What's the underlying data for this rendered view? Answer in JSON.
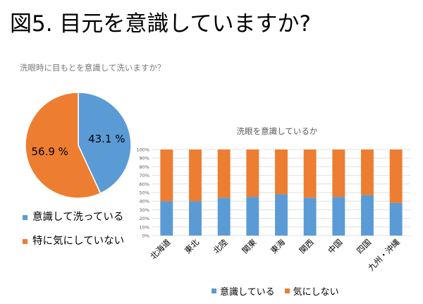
{
  "slide": {
    "title": "図5. 目元を意識していますか?"
  },
  "colors": {
    "blue": "#5b9bd5",
    "orange": "#ed7d31",
    "grid": "#d9d9d9",
    "axis_text": "#595959"
  },
  "chart_data": [
    {
      "type": "pie",
      "title": "洗眼時に目もとを意識して洗いますか？",
      "slices": [
        {
          "label": "意識して洗っている",
          "value": 43.1,
          "value_label": "43.1 %",
          "color": "#5b9bd5"
        },
        {
          "label": "特に気にしていない",
          "value": 56.9,
          "value_label": "56.9 %",
          "color": "#ed7d31"
        }
      ],
      "legend_position": "bottom-left"
    },
    {
      "type": "bar",
      "stacked": "percent",
      "title": "洗眼を意識しているか",
      "categories": [
        "北海道",
        "東北",
        "北陸",
        "関東",
        "東海",
        "関西",
        "中国",
        "四国",
        "九州・沖縄"
      ],
      "series": [
        {
          "name": "意識している",
          "color": "#5b9bd5",
          "values": [
            40,
            40,
            44,
            45,
            48,
            44,
            45,
            47,
            38
          ]
        },
        {
          "name": "気にしない",
          "color": "#ed7d31",
          "values": [
            60,
            60,
            56,
            55,
            52,
            56,
            55,
            53,
            62
          ]
        }
      ],
      "y_ticks": [
        "0%",
        "10%",
        "20%",
        "30%",
        "40%",
        "50%",
        "60%",
        "70%",
        "80%",
        "90%",
        "100%"
      ],
      "ylim": [
        0,
        100
      ],
      "grid": true,
      "legend_position": "bottom"
    }
  ]
}
